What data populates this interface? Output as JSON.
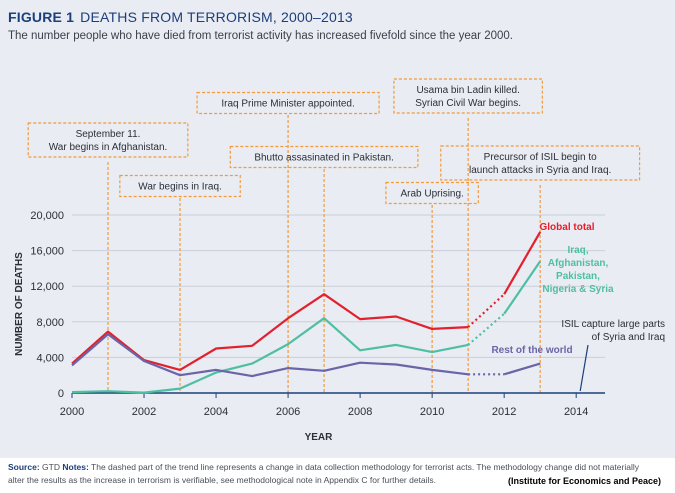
{
  "header": {
    "figure_label": "FIGURE 1",
    "title": "DEATHS FROM TERRORISM, 2000–2013",
    "subtitle": "The number people who have died from terrorist activity has increased fivefold since the year 2000."
  },
  "colors": {
    "global": "#e3202e",
    "iraq_group": "#4fbfa3",
    "rest": "#6a64a8",
    "annotation": "#f29a3c",
    "title": "#1b3f7a"
  },
  "chart_data": {
    "type": "line",
    "xlabel": "YEAR",
    "ylabel": "NUMBER OF DEATHS",
    "xlim": [
      2000,
      2014.8
    ],
    "ylim": [
      0,
      20000
    ],
    "x_ticks": [
      "2000",
      "2002",
      "2004",
      "2006",
      "2008",
      "2010",
      "2012",
      "2014"
    ],
    "y_ticks": [
      "0",
      "4,000",
      "8,000",
      "12,000",
      "16,000",
      "20,000"
    ],
    "grid": true,
    "series": [
      {
        "name": "Global total",
        "color": "#e3202e",
        "x": [
          2000,
          2001,
          2002,
          2003,
          2004,
          2005,
          2006,
          2007,
          2008,
          2009,
          2010,
          2011,
          2012,
          2013
        ],
        "y": [
          3300,
          6900,
          3700,
          2600,
          5000,
          5300,
          8400,
          11100,
          8300,
          8600,
          7200,
          7400,
          11100,
          18100
        ],
        "dashed_from": 2011,
        "dashed_to": 2012
      },
      {
        "name": "Iraq, Afghanistan, Pakistan, Nigeria & Syria",
        "color": "#4fbfa3",
        "x": [
          2000,
          2001,
          2002,
          2003,
          2004,
          2005,
          2006,
          2007,
          2008,
          2009,
          2010,
          2011,
          2012,
          2013
        ],
        "y": [
          100,
          200,
          50,
          500,
          2300,
          3300,
          5500,
          8400,
          4800,
          5400,
          4600,
          5400,
          8900,
          14800
        ],
        "dashed_from": 2011,
        "dashed_to": 2012
      },
      {
        "name": "Rest of the world",
        "color": "#6a64a8",
        "x": [
          2000,
          2001,
          2002,
          2003,
          2004,
          2005,
          2006,
          2007,
          2008,
          2009,
          2010,
          2011,
          2012,
          2013
        ],
        "y": [
          3100,
          6600,
          3600,
          2000,
          2600,
          1900,
          2800,
          2500,
          3400,
          3200,
          2600,
          2100,
          2100,
          3300
        ],
        "dashed_from": 2011,
        "dashed_to": 2012
      }
    ],
    "series_labels": [
      "Global total",
      "Iraq,",
      "Afghanistan,",
      "Pakistan,",
      "Nigeria & Syria",
      "Rest of the world"
    ],
    "annotations": [
      {
        "year": 2001,
        "lines": [
          "September 11.",
          "War begins in Afghanistan."
        ]
      },
      {
        "year": 2003,
        "lines": [
          "War begins in Iraq."
        ]
      },
      {
        "year": 2006,
        "lines": [
          "Iraq Prime Minister appointed."
        ]
      },
      {
        "year": 2007,
        "lines": [
          "Bhutto assasinated in Pakistan."
        ]
      },
      {
        "year": 2010,
        "lines": [
          "Arab Uprising."
        ]
      },
      {
        "year": 2011,
        "lines": [
          "Usama bin Ladin killed.",
          "Syrian Civil War begins."
        ]
      },
      {
        "year": 2013,
        "lines": [
          "Precursor of ISIL begin to",
          "launch attacks in Syria and Iraq."
        ]
      },
      {
        "year": 2014,
        "lines": [
          "ISIL capture large parts",
          "of Syria and Iraq"
        ]
      }
    ]
  },
  "footer": {
    "source_label": "Source:",
    "source_value": "GTD",
    "notes_label": "Notes:",
    "notes_line1": "The dashed part of the trend line represents a change in data collection methodology for terrorist acts. The methodology change did not materially",
    "notes_line2": "alter the results as the increase in terrorism is verifiable, see methodological note in Appendix C for further details.",
    "attribution": "(Institute for Economics and Peace)"
  }
}
